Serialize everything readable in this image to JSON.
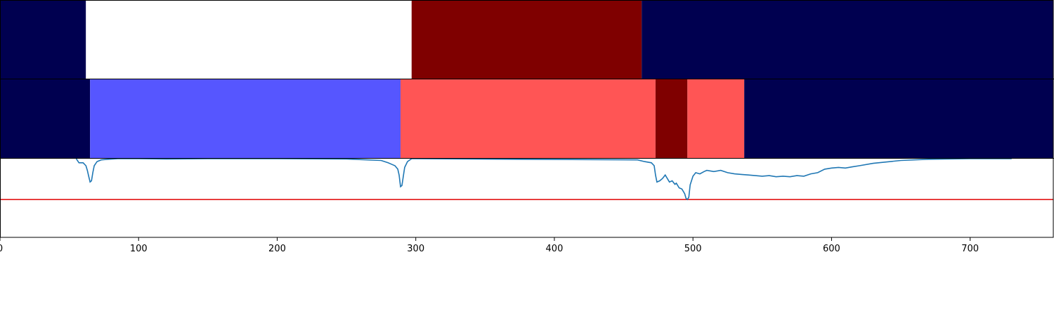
{
  "chart_data": {
    "type": "segmentation-timeline",
    "title": "",
    "xlabel": "",
    "ylabel": "",
    "xlim": [
      0,
      760
    ],
    "x_ticks": [
      0,
      100,
      200,
      300,
      400,
      500,
      600,
      700
    ],
    "x_tick_labels": [
      "0",
      "100",
      "200",
      "300",
      "400",
      "500",
      "600",
      "700"
    ],
    "colors": {
      "navy": "#000050",
      "white": "#ffffff",
      "dark_red": "#7f0000",
      "blue": "#5656ff",
      "light_red": "#ff5555",
      "line": "#1f77b4",
      "threshold": "#e00000"
    },
    "rows": [
      {
        "segments": [
          {
            "start": 0,
            "end": 62,
            "color": "navy"
          },
          {
            "start": 62,
            "end": 297,
            "color": "white"
          },
          {
            "start": 297,
            "end": 463,
            "color": "dark_red"
          },
          {
            "start": 463,
            "end": 760,
            "color": "navy"
          }
        ]
      },
      {
        "segments": [
          {
            "start": 0,
            "end": 65,
            "color": "navy"
          },
          {
            "start": 65,
            "end": 289,
            "color": "blue"
          },
          {
            "start": 289,
            "end": 473,
            "color": "light_red"
          },
          {
            "start": 473,
            "end": 496,
            "color": "dark_red"
          },
          {
            "start": 496,
            "end": 537,
            "color": "light_red"
          },
          {
            "start": 537,
            "end": 760,
            "color": "navy"
          }
        ]
      }
    ],
    "signal": {
      "ylim": [
        -0.35,
        1.0
      ],
      "threshold": 0.3,
      "x": [
        55,
        57,
        60,
        62,
        63,
        64,
        65,
        66,
        67,
        68,
        70,
        73,
        78,
        85,
        100,
        120,
        150,
        200,
        250,
        275,
        280,
        283,
        285,
        287,
        288,
        289,
        290,
        291,
        292,
        294,
        297,
        300,
        460,
        465,
        470,
        472,
        473,
        474,
        476,
        478,
        480,
        483,
        485,
        487,
        488,
        490,
        492,
        494,
        495,
        496,
        497,
        498,
        500,
        502,
        505,
        508,
        510,
        515,
        520,
        525,
        530,
        535,
        540,
        545,
        550,
        555,
        560,
        565,
        570,
        575,
        580,
        585,
        590,
        595,
        600,
        605,
        610,
        615,
        620,
        630,
        650,
        670,
        700,
        730
      ],
      "y": [
        1.0,
        0.93,
        0.93,
        0.88,
        0.8,
        0.7,
        0.6,
        0.62,
        0.76,
        0.88,
        0.95,
        0.98,
        0.99,
        1.0,
        1.0,
        0.995,
        1.0,
        1.0,
        0.995,
        0.97,
        0.93,
        0.9,
        0.88,
        0.82,
        0.72,
        0.52,
        0.54,
        0.7,
        0.85,
        0.95,
        1.0,
        1.0,
        0.98,
        0.95,
        0.93,
        0.88,
        0.72,
        0.6,
        0.62,
        0.66,
        0.72,
        0.6,
        0.62,
        0.56,
        0.58,
        0.5,
        0.48,
        0.4,
        0.32,
        0.3,
        0.34,
        0.55,
        0.7,
        0.76,
        0.74,
        0.78,
        0.8,
        0.78,
        0.8,
        0.76,
        0.74,
        0.73,
        0.72,
        0.71,
        0.7,
        0.71,
        0.69,
        0.7,
        0.69,
        0.71,
        0.7,
        0.74,
        0.76,
        0.82,
        0.84,
        0.85,
        0.84,
        0.86,
        0.88,
        0.92,
        0.97,
        0.99,
        1.0,
        1.0
      ]
    }
  }
}
